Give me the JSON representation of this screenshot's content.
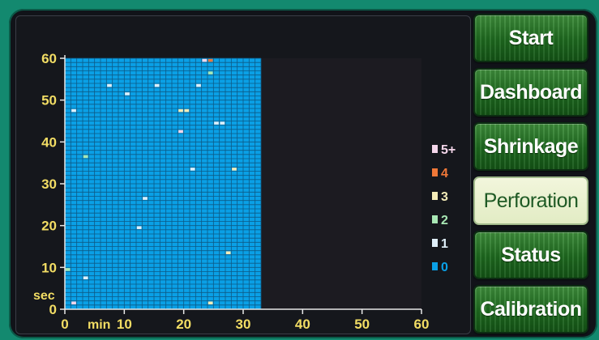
{
  "nav": {
    "buttons": [
      {
        "id": "start",
        "label": "Start",
        "active": false
      },
      {
        "id": "dashboard",
        "label": "Dashboard",
        "active": false
      },
      {
        "id": "shrinkage",
        "label": "Shrinkage",
        "active": false
      },
      {
        "id": "perforation",
        "label": "Perforation",
        "active": true
      },
      {
        "id": "status",
        "label": "Status",
        "active": false
      },
      {
        "id": "calibration",
        "label": "Calibration",
        "active": false
      }
    ]
  },
  "colors": {
    "cell_default": "#0aa0e6",
    "grid_line": "#0d5a86",
    "empty_area": "#1c1b21",
    "axis_label": "#f2dd64",
    "nav_green": "#1e6a1f",
    "nav_active_bg": "#eef2d4"
  },
  "chart_data": {
    "type": "heatmap",
    "x_unit": "min",
    "y_unit": "sec",
    "x_ticks": [
      "0",
      "10",
      "20",
      "30",
      "40",
      "50",
      "60"
    ],
    "y_ticks": [
      "0",
      "10",
      "20",
      "30",
      "40",
      "50",
      "60"
    ],
    "xlim": [
      0,
      60
    ],
    "ylim": [
      0,
      60
    ],
    "filled_until_min": 33,
    "default_level": "0",
    "legend": [
      {
        "label": "5+",
        "color": "#f4d6ea"
      },
      {
        "label": "4",
        "color": "#f07838"
      },
      {
        "label": "3",
        "color": "#f4ecb8"
      },
      {
        "label": "2",
        "color": "#a8e7b4"
      },
      {
        "label": "1",
        "color": "#dfeff9"
      },
      {
        "label": "0",
        "color": "#0aa0e6"
      }
    ],
    "marked_cells": [
      {
        "min": 1,
        "sec": 1,
        "level": "5+"
      },
      {
        "min": 3,
        "sec": 7,
        "level": "1"
      },
      {
        "min": 0,
        "sec": 9,
        "level": "2"
      },
      {
        "min": 24,
        "sec": 1,
        "level": "3"
      },
      {
        "min": 27,
        "sec": 13,
        "level": "3"
      },
      {
        "min": 12,
        "sec": 19,
        "level": "1"
      },
      {
        "min": 13,
        "sec": 26,
        "level": "1"
      },
      {
        "min": 21,
        "sec": 33,
        "level": "1"
      },
      {
        "min": 28,
        "sec": 33,
        "level": "3"
      },
      {
        "min": 3,
        "sec": 36,
        "level": "2"
      },
      {
        "min": 19,
        "sec": 42,
        "level": "5+"
      },
      {
        "min": 25,
        "sec": 44,
        "level": "1"
      },
      {
        "min": 26,
        "sec": 44,
        "level": "1"
      },
      {
        "min": 1,
        "sec": 47,
        "level": "1"
      },
      {
        "min": 19,
        "sec": 47,
        "level": "3"
      },
      {
        "min": 20,
        "sec": 47,
        "level": "3"
      },
      {
        "min": 10,
        "sec": 51,
        "level": "1"
      },
      {
        "min": 7,
        "sec": 53,
        "level": "1"
      },
      {
        "min": 15,
        "sec": 53,
        "level": "1"
      },
      {
        "min": 22,
        "sec": 53,
        "level": "1"
      },
      {
        "min": 24,
        "sec": 56,
        "level": "2"
      },
      {
        "min": 23,
        "sec": 59,
        "level": "5+"
      },
      {
        "min": 24,
        "sec": 59,
        "level": "4"
      }
    ]
  }
}
